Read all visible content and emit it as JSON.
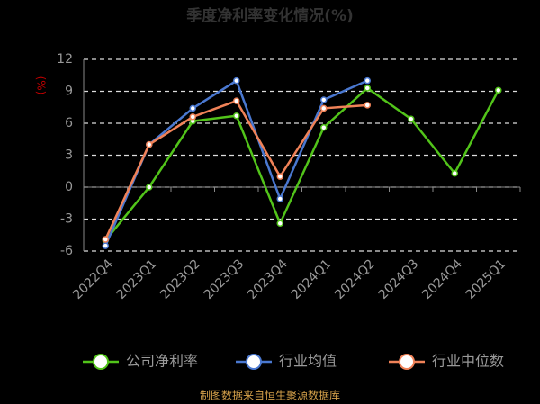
{
  "chart_data": {
    "type": "line",
    "title": "季度净利率变化情况(%)",
    "y_label": "(%)",
    "categories": [
      "2022Q4",
      "2023Q1",
      "2023Q2",
      "2023Q3",
      "2023Q4",
      "2024Q1",
      "2024Q2",
      "2024Q3",
      "2024Q4",
      "2025Q1"
    ],
    "series": [
      {
        "name": "公司净利率",
        "color": "#52c41a",
        "values": [
          -5.0,
          0.0,
          6.2,
          6.7,
          -3.4,
          5.6,
          9.3,
          6.4,
          1.3,
          9.1
        ]
      },
      {
        "name": "行业均值",
        "color": "#4a78d0",
        "values": [
          -5.5,
          4.0,
          7.4,
          10.0,
          -1.1,
          8.2,
          10.0,
          null,
          null,
          null
        ]
      },
      {
        "name": "行业中位数",
        "color": "#f08258",
        "values": [
          -4.9,
          4.0,
          6.6,
          8.1,
          1.0,
          7.4,
          7.7,
          null,
          null,
          null
        ]
      }
    ],
    "ylim": [
      -6,
      12
    ],
    "yticks": [
      -6,
      -3,
      0,
      3,
      6,
      9,
      12
    ],
    "grid": true,
    "footer": "制图数据来自恒生聚源数据库"
  }
}
